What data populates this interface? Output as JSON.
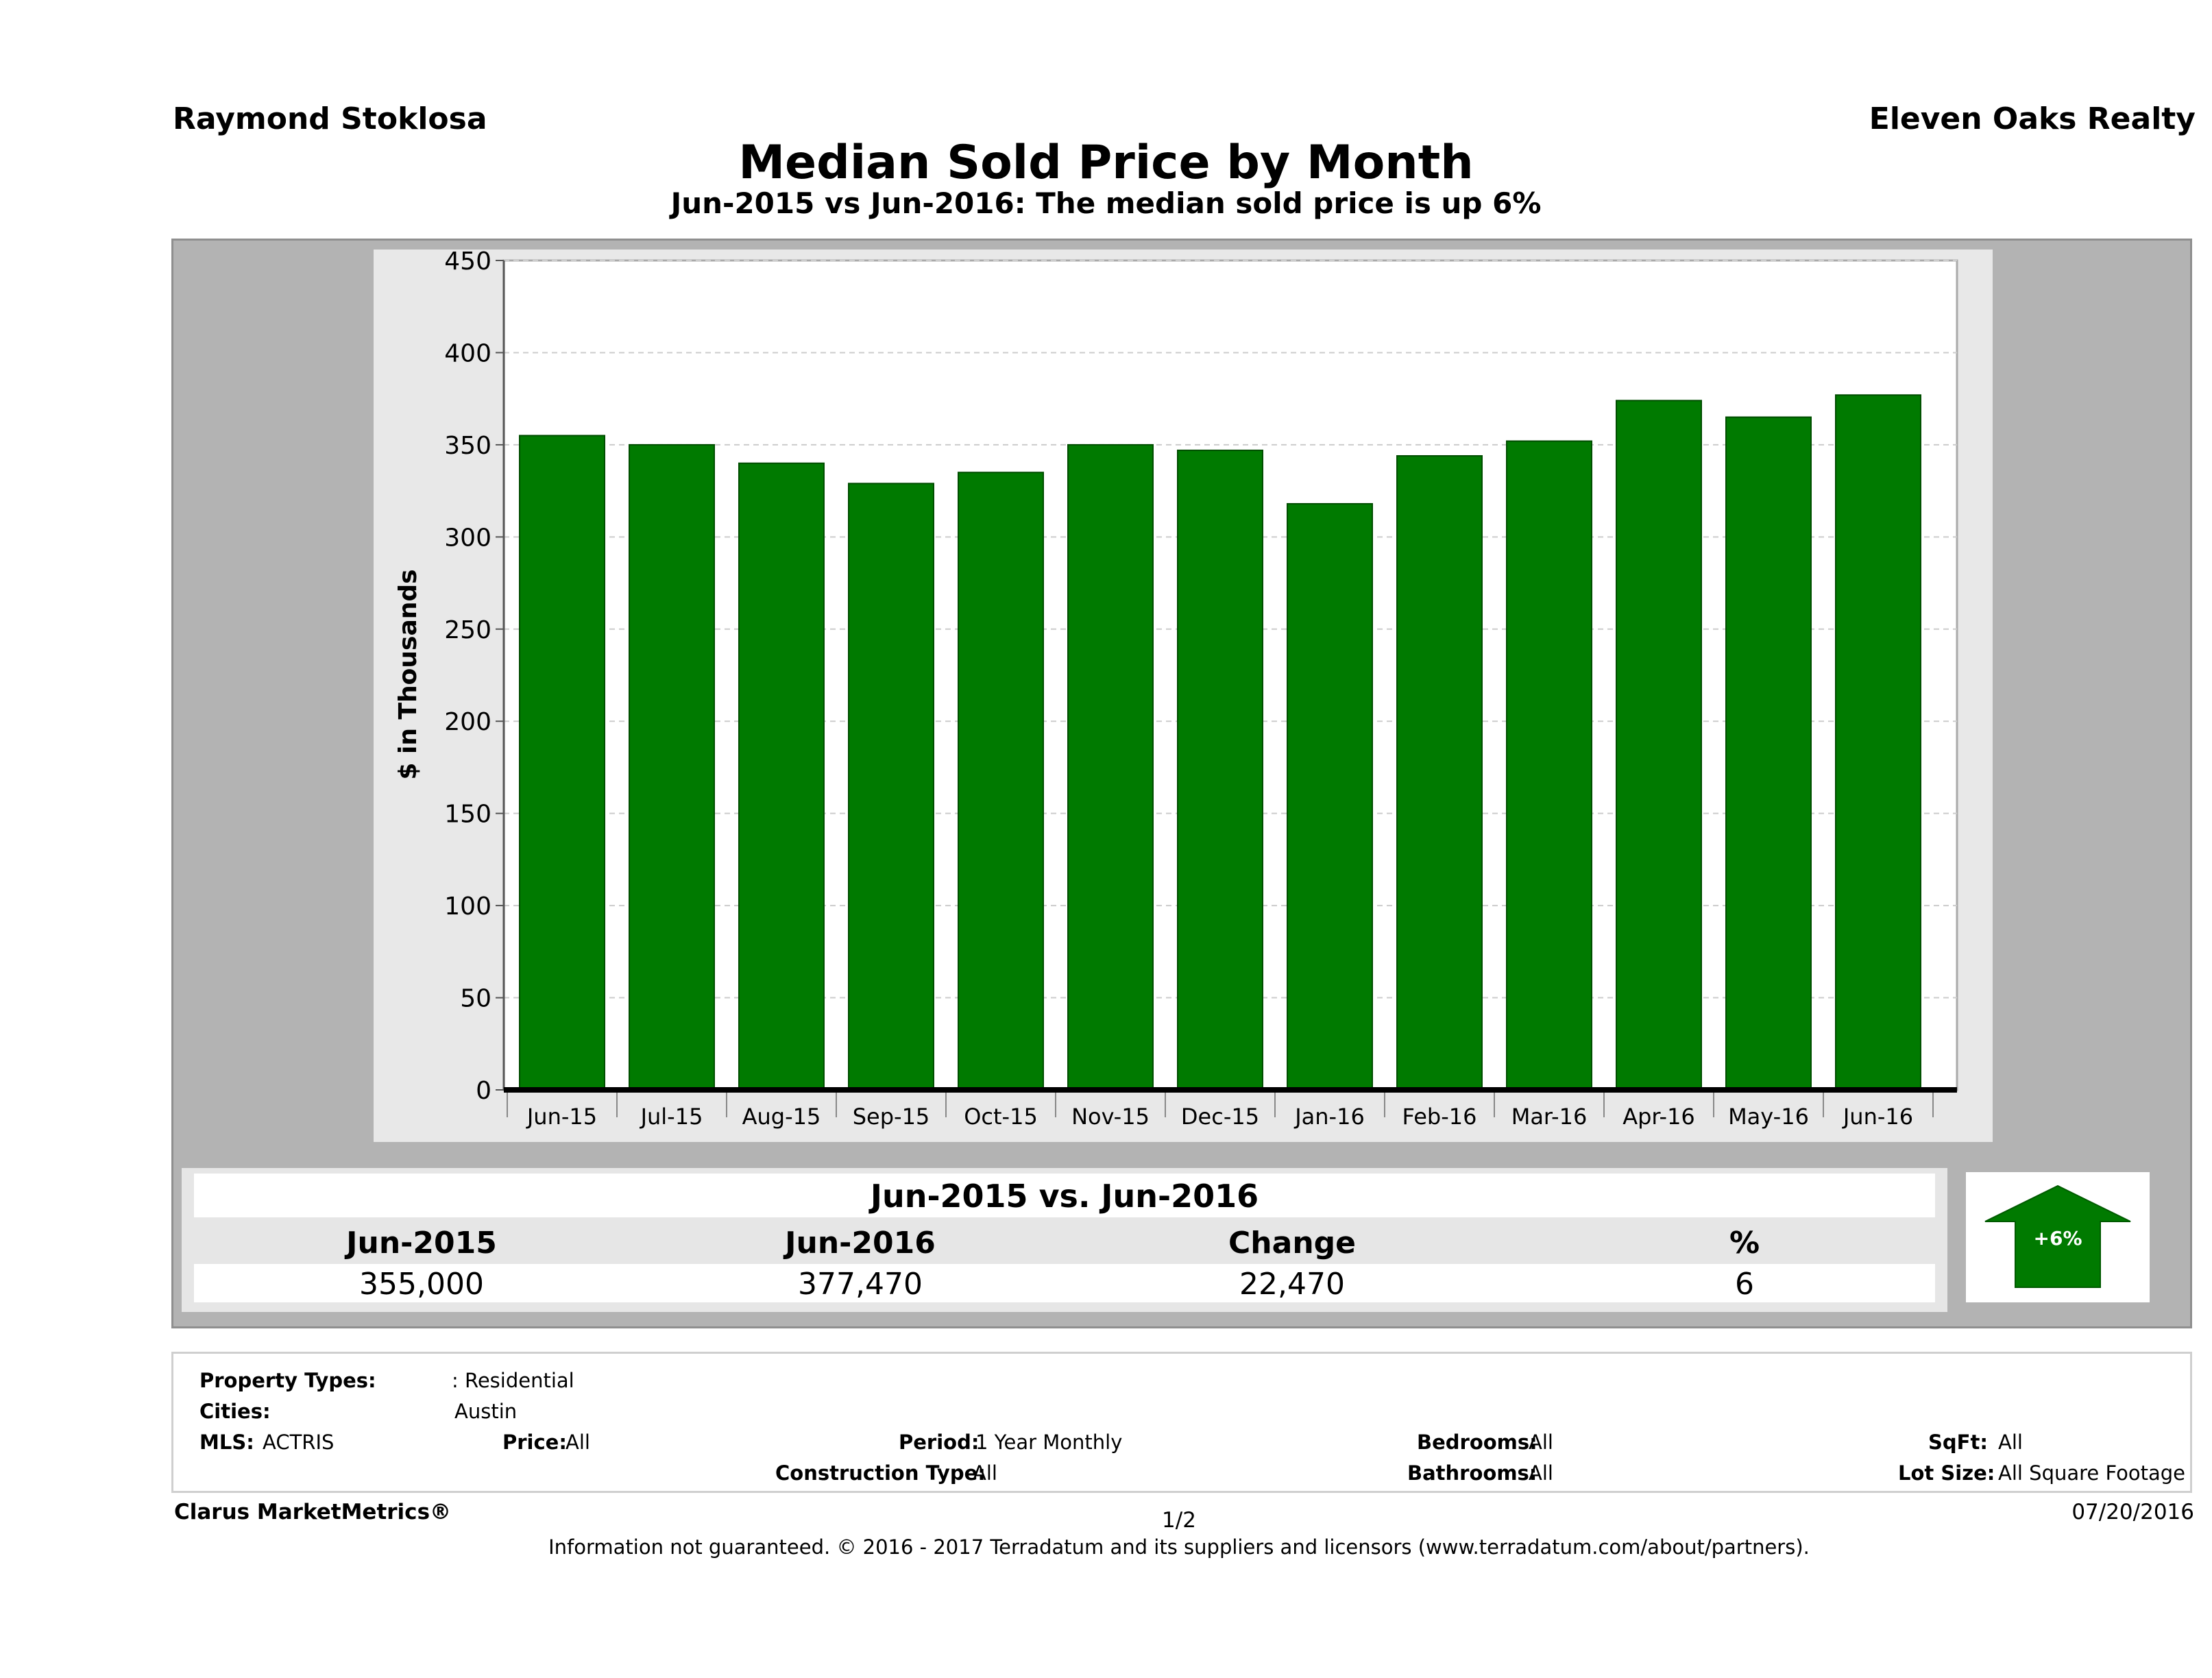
{
  "header": {
    "agent": "Raymond Stoklosa",
    "brokerage": "Eleven Oaks Realty"
  },
  "chart_data": {
    "type": "bar",
    "title": "Median Sold Price by Month",
    "subtitle": "Jun-2015 vs Jun-2016: The median sold price is up 6%",
    "xlabel": "",
    "ylabel": "$ in Thousands",
    "ylim": [
      0,
      450
    ],
    "yticks": [
      0,
      50,
      100,
      150,
      200,
      250,
      300,
      350,
      400,
      450
    ],
    "grid": true,
    "categories": [
      "Jun-15",
      "Jul-15",
      "Aug-15",
      "Sep-15",
      "Oct-15",
      "Nov-15",
      "Dec-15",
      "Jan-16",
      "Feb-16",
      "Mar-16",
      "Apr-16",
      "May-16",
      "Jun-16"
    ],
    "values": [
      355,
      350,
      340,
      329,
      335,
      350,
      347,
      318,
      344,
      352,
      374,
      365,
      377
    ],
    "bar_color": "#007a00"
  },
  "summary": {
    "heading": "Jun-2015 vs. Jun-2016",
    "col1_label": "Jun-2015",
    "col2_label": "Jun-2016",
    "col3_label": "Change",
    "col4_label": "%",
    "col1_value": "355,000",
    "col2_value": "377,470",
    "col3_value": "22,470",
    "col4_value": "6",
    "badge": "+6%",
    "badge_color": "#007a00"
  },
  "filters": {
    "property_types_label": "Property Types:",
    "property_types_value": ": Residential",
    "cities_label": "Cities:",
    "cities_value": "Austin",
    "mls_label": "MLS:",
    "mls_value": "ACTRIS",
    "price_label": "Price:",
    "price_value": "All",
    "period_label": "Period:",
    "period_value": "1 Year Monthly",
    "construction_label": "Construction Type:",
    "construction_value": "All",
    "bedrooms_label": "Bedrooms:",
    "bedrooms_value": "All",
    "bathrooms_label": "Bathrooms:",
    "bathrooms_value": "All",
    "sqft_label": "SqFt:",
    "sqft_value": "All",
    "lot_label": "Lot Size:",
    "lot_value": "All Square Footage"
  },
  "footer": {
    "brand": "Clarus MarketMetrics®",
    "page": "1/2",
    "date": "07/20/2016",
    "disclaimer": "Information not guaranteed. © 2016 - 2017 Terradatum and its suppliers and licensors (www.terradatum.com/about/partners)."
  }
}
